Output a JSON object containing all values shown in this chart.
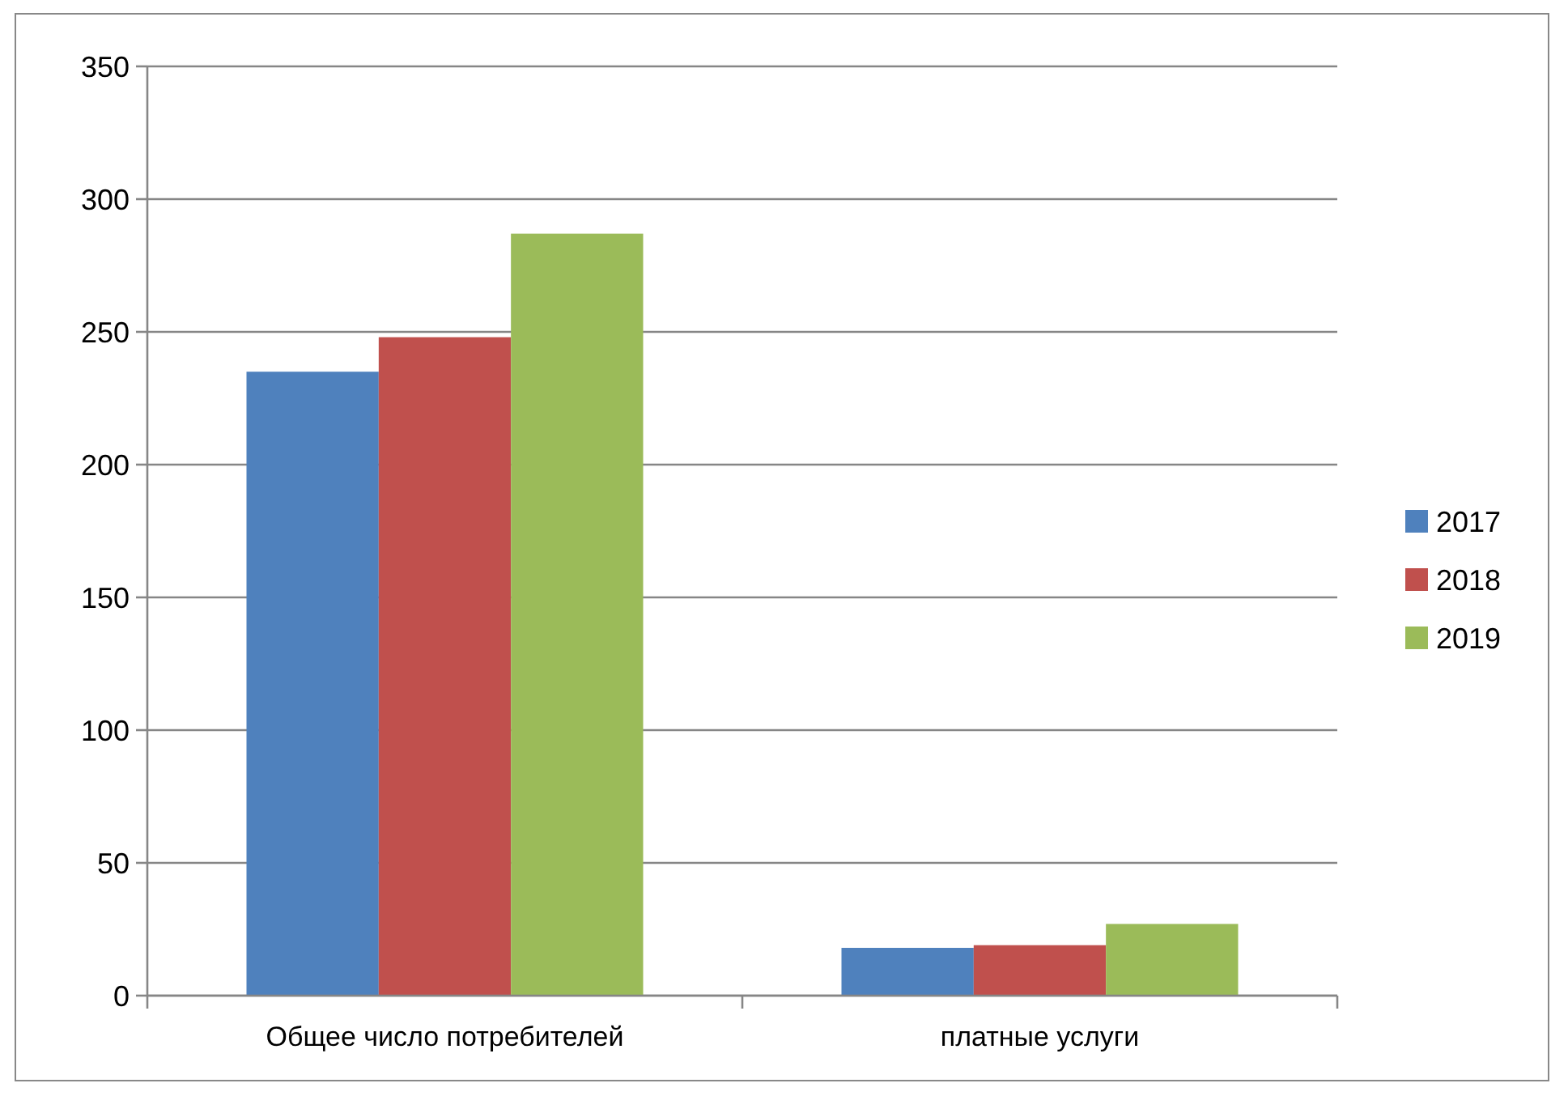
{
  "chart_data": {
    "type": "bar",
    "categories": [
      "Общее число потребителей",
      "платные услуги"
    ],
    "series": [
      {
        "name": "2017",
        "color": "#4f81bd",
        "values": [
          235,
          18
        ]
      },
      {
        "name": "2018",
        "color": "#c0504d",
        "values": [
          248,
          19
        ]
      },
      {
        "name": "2019",
        "color": "#9bbb59",
        "values": [
          287,
          27
        ]
      }
    ],
    "ylim": [
      0,
      350
    ],
    "yticks": [
      0,
      50,
      100,
      150,
      200,
      250,
      300,
      350
    ],
    "grid": "y",
    "legend": "right"
  }
}
